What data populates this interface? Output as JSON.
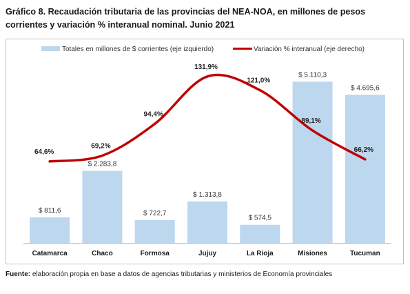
{
  "title": "Gráfico 8. Recaudación tributaria de las provincias del NEA-NOA, en millones de pesos corrientes y variación % interanual nominal. Junio 2021",
  "source": {
    "label": "Fuente:",
    "text": " elaboración propia en base a datos de agencias tributarias y ministerios de Economía provinciales"
  },
  "colors": {
    "bars": "#bdd7ee",
    "line": "#c00000"
  },
  "chart_data": {
    "type": "bar",
    "categories": [
      "Catamarca",
      "Chaco",
      "Formosa",
      "Jujuy",
      "La Rioja",
      "Misiones",
      "Tucuman"
    ],
    "series": [
      {
        "name": "Totales en millones de $ corrientes (eje izquierdo)",
        "type": "bar",
        "axis": "left",
        "values": [
          811.6,
          2283.8,
          722.7,
          1313.8,
          574.5,
          5110.3,
          4695.6
        ],
        "labels": [
          "$ 811,6",
          "$ 2.283,8",
          "$ 722,7",
          "$ 1.313,8",
          "$ 574,5",
          "$ 5.110,3",
          "$ 4.695,6"
        ]
      },
      {
        "name": "Variación % interanual (eje derecho)",
        "type": "line",
        "axis": "right",
        "values": [
          64.6,
          69.2,
          94.4,
          131.9,
          121.0,
          89.1,
          66.2
        ],
        "labels": [
          "64,6%",
          "69,2%",
          "94,4%",
          "131,9%",
          "121,0%",
          "89,1%",
          "66,2%"
        ]
      }
    ],
    "ylim_left": [
      0,
      5600
    ],
    "ylim_right": [
      0,
      140
    ],
    "legend_position": "top",
    "grid": false,
    "axes_visible": false
  }
}
